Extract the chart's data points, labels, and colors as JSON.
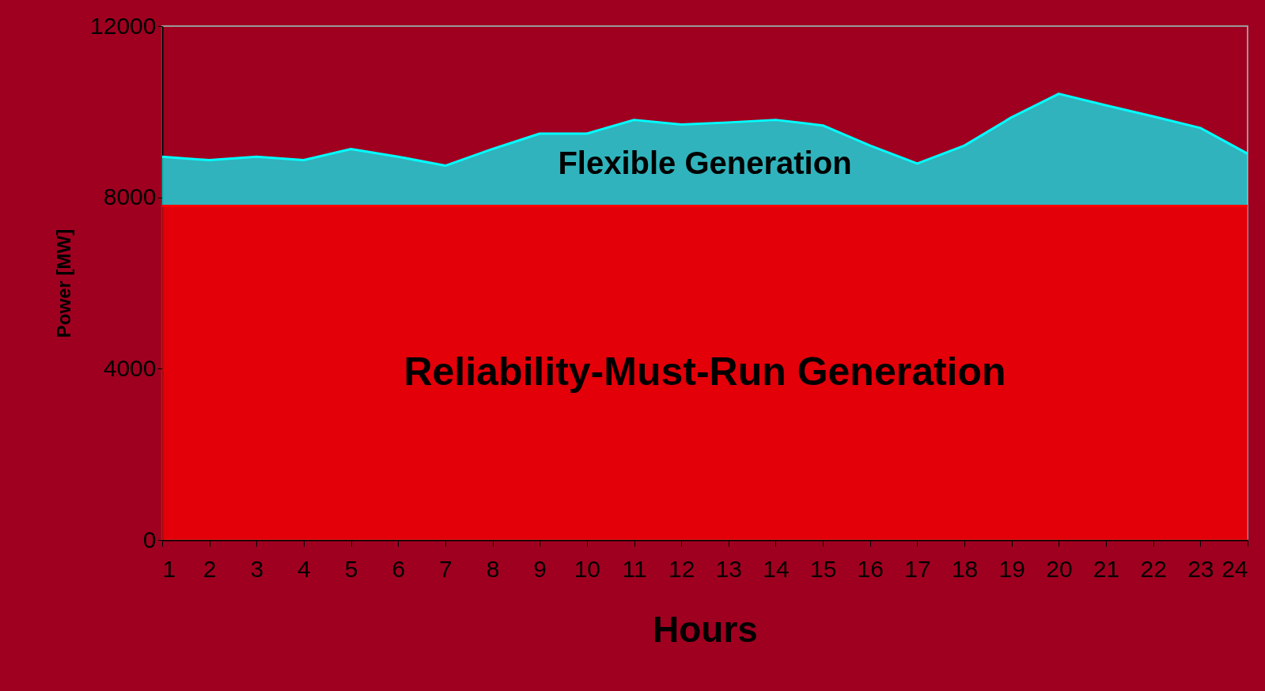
{
  "chart_data": {
    "type": "area",
    "stacked": true,
    "xlabel": "Hours",
    "ylabel": "Power [MW]",
    "x": [
      1,
      2,
      3,
      4,
      5,
      6,
      7,
      8,
      9,
      10,
      11,
      12,
      13,
      14,
      15,
      16,
      17,
      18,
      19,
      20,
      21,
      22,
      23,
      24
    ],
    "series": [
      {
        "name": "Reliability-Must-Run Generation",
        "color": "#ff0000",
        "values": [
          7800,
          7800,
          7800,
          7800,
          7800,
          7800,
          7800,
          7800,
          7800,
          7800,
          7800,
          7800,
          7800,
          7800,
          7800,
          7800,
          7800,
          7800,
          7800,
          7800,
          7800,
          7800,
          7800,
          7800
        ]
      },
      {
        "name": "Flexible Generation",
        "color": "#00ffff",
        "values": [
          1150,
          1070,
          1150,
          1070,
          1330,
          1150,
          940,
          1330,
          1690,
          1690,
          2010,
          1900,
          1950,
          2010,
          1880,
          1410,
          990,
          1410,
          2070,
          2620,
          2350,
          2090,
          1820,
          1220
        ]
      }
    ],
    "xlim": [
      1,
      24
    ],
    "xticks": [
      1,
      2,
      3,
      4,
      5,
      6,
      7,
      8,
      9,
      10,
      11,
      12,
      13,
      14,
      15,
      16,
      17,
      18,
      19,
      20,
      21,
      22,
      23,
      24
    ],
    "ylim": [
      0,
      12000
    ],
    "yticks": [
      0,
      4000,
      8000,
      12000
    ],
    "grid": false,
    "legend": false
  }
}
